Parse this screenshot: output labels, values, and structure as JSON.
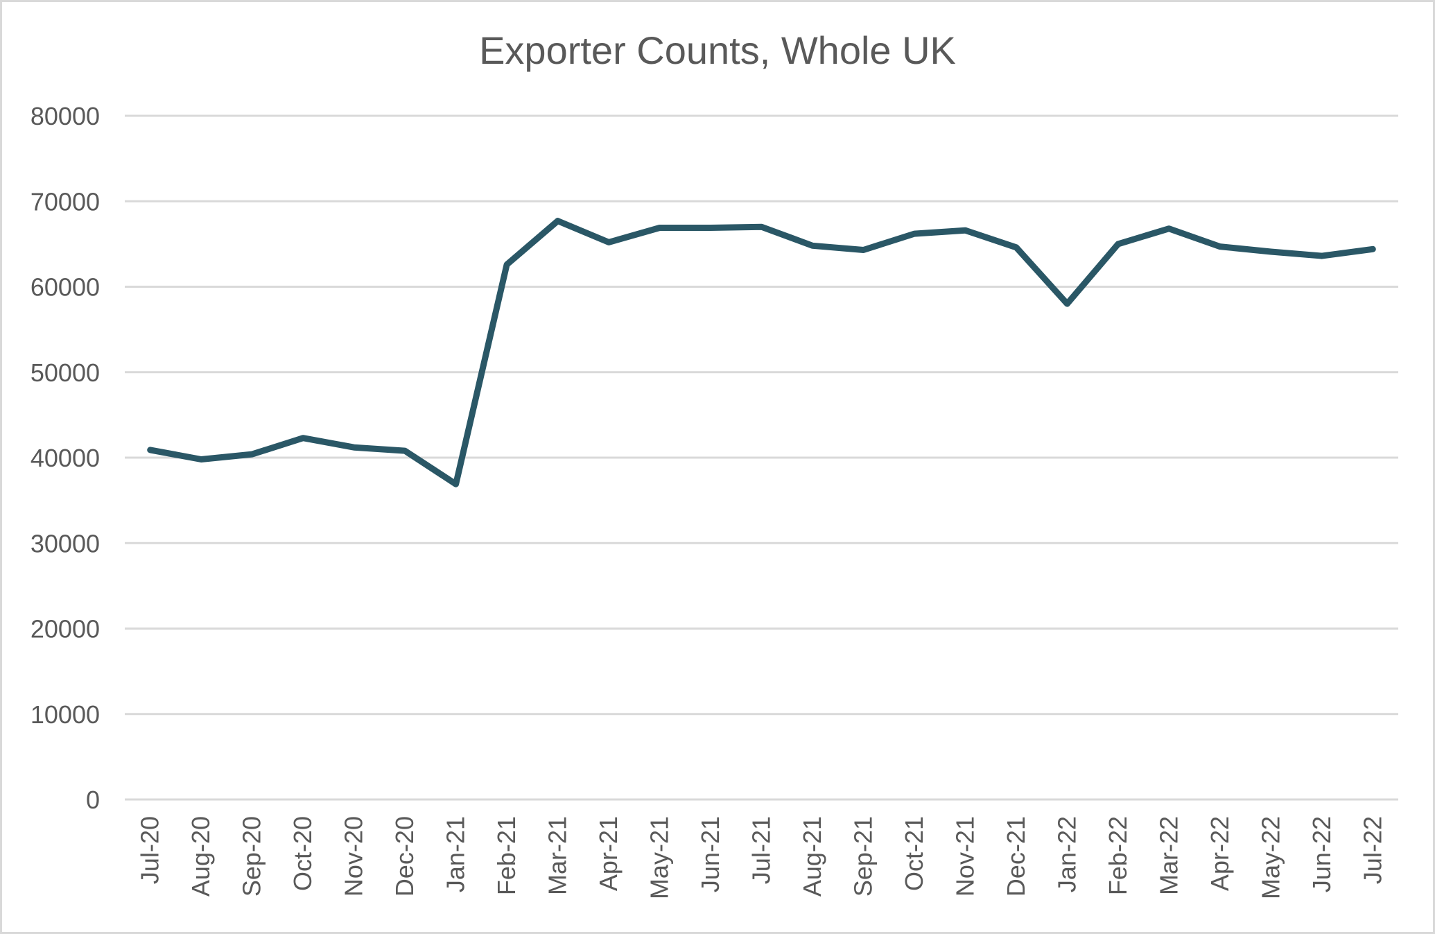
{
  "chart_data": {
    "type": "line",
    "title": "Exporter Counts, Whole UK",
    "xlabel": "",
    "ylabel": "",
    "ylim": [
      0,
      80000
    ],
    "yticks": [
      0,
      10000,
      20000,
      30000,
      40000,
      50000,
      60000,
      70000,
      80000
    ],
    "grid": true,
    "legend": null,
    "categories": [
      "Jul-20",
      "Aug-20",
      "Sep-20",
      "Oct-20",
      "Nov-20",
      "Dec-20",
      "Jan-21",
      "Feb-21",
      "Mar-21",
      "Apr-21",
      "May-21",
      "Jun-21",
      "Jul-21",
      "Aug-21",
      "Sep-21",
      "Oct-21",
      "Nov-21",
      "Dec-21",
      "Jan-22",
      "Feb-22",
      "Mar-22",
      "Apr-22",
      "May-22",
      "Jun-22",
      "Jul-22"
    ],
    "series": [
      {
        "name": "Exporter Counts",
        "color": "#2a5766",
        "values": [
          40900,
          39800,
          40400,
          42300,
          41200,
          40800,
          36900,
          62600,
          67700,
          65200,
          66900,
          66900,
          67000,
          64800,
          64300,
          66200,
          66600,
          64600,
          58000,
          65000,
          66800,
          64700,
          64100,
          63600,
          64400
        ]
      }
    ]
  },
  "colors": {
    "series": "#2a5766",
    "grid": "#d9d9d9",
    "text": "#595959",
    "border": "#d9d9d9"
  }
}
